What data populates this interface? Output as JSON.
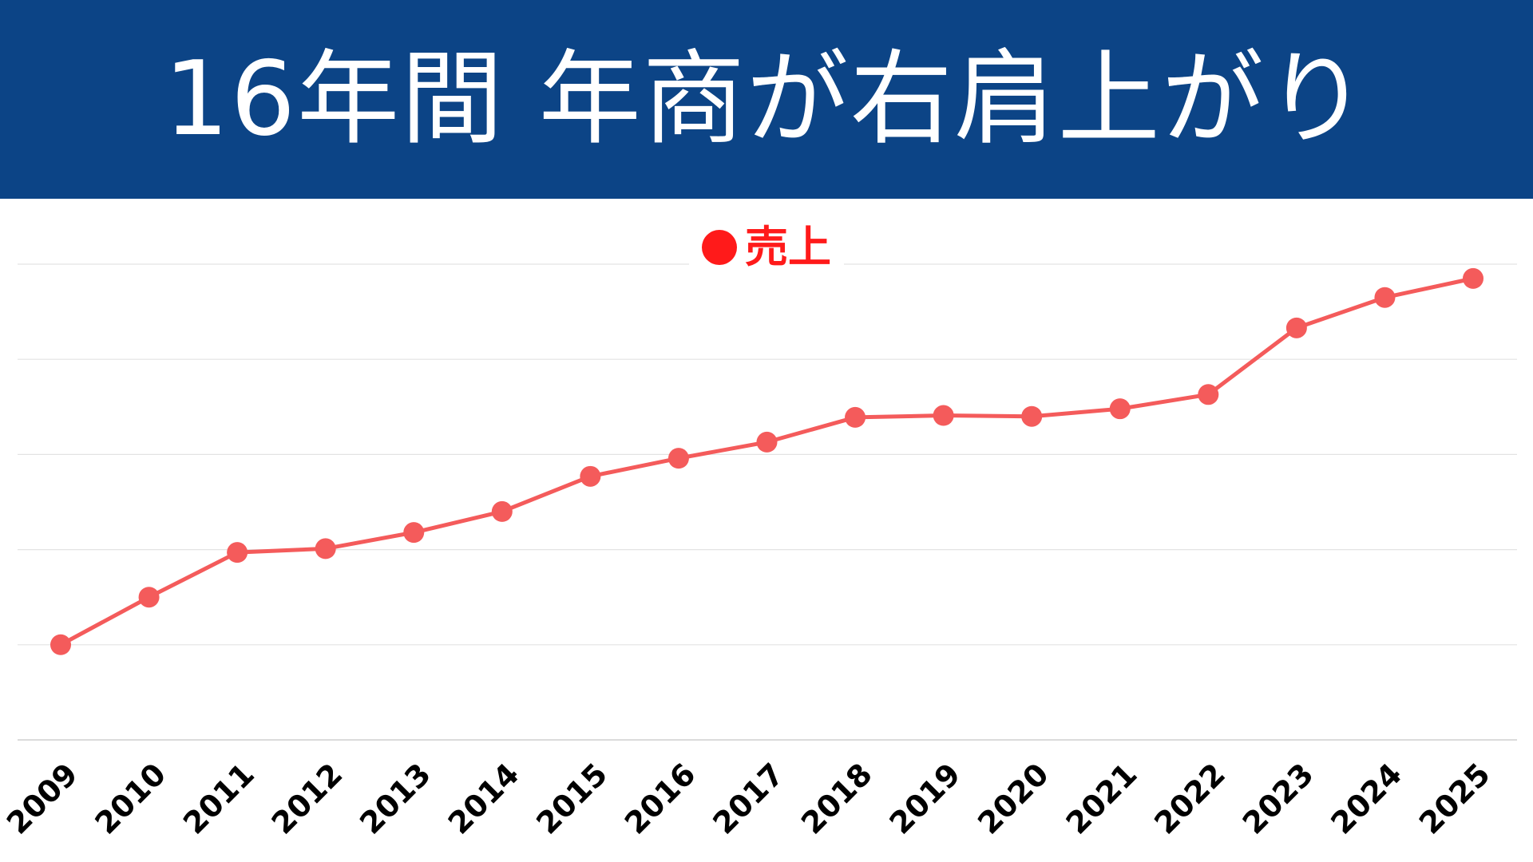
{
  "header": {
    "title": "16年間 年商が右肩上がり",
    "background_color": "#0c4486"
  },
  "chart_data": {
    "type": "line",
    "title": "16年間 年商が右肩上がり",
    "xlabel": "",
    "ylabel": "",
    "x": [
      "2009",
      "2010",
      "2011",
      "2012",
      "2013",
      "2014",
      "2015",
      "2016",
      "2017",
      "2018",
      "2019",
      "2020",
      "2021",
      "2022",
      "2023",
      "2024",
      "2025"
    ],
    "series": [
      {
        "name": "売上",
        "color": "#f45b5b",
        "legend_color": "#ff1a1a",
        "values": [
          1.0,
          1.5,
          1.97,
          2.01,
          2.18,
          2.4,
          2.77,
          2.96,
          3.13,
          3.39,
          3.41,
          3.4,
          3.48,
          3.63,
          4.33,
          4.65,
          4.85
        ]
      }
    ],
    "ylim": [
      0,
      5
    ],
    "y_ticks_labeled": false,
    "grid": true,
    "legend_position": "top-center"
  }
}
